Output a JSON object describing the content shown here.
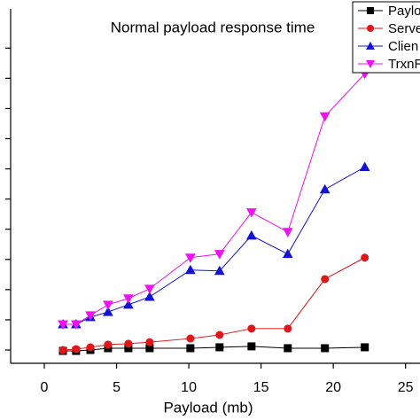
{
  "chart_data": {
    "type": "line",
    "title": "Normal payload response time",
    "x_label": "Payload (mb)",
    "x": [
      1.29,
      2.2,
      3.19,
      4.41,
      5.82,
      7.29,
      10.11,
      12.13,
      14.34,
      16.85,
      19.42,
      22.18
    ],
    "series": [
      {
        "name": "Paylo",
        "color": "#000000",
        "marker": "square",
        "values": [
          -0.03,
          -0.03,
          0,
          0.06,
          0.06,
          0.06,
          0.06,
          0.09,
          0.12,
          0.06,
          0.06,
          0.09
        ]
      },
      {
        "name": "Serve",
        "color": "#e0161b",
        "marker": "circle",
        "values": [
          0,
          0.03,
          0.09,
          0.18,
          0.21,
          0.26,
          0.38,
          0.5,
          0.71,
          0.71,
          2.35,
          3.06
        ]
      },
      {
        "name": "Clien",
        "color": "#1313d6",
        "marker": "triangle-up",
        "values": [
          0.85,
          0.85,
          1.09,
          1.26,
          1.5,
          1.76,
          2.65,
          2.62,
          3.79,
          3.18,
          5.32,
          6.06
        ]
      },
      {
        "name": "TrxnR",
        "color": "#f010f0",
        "marker": "triangle-down",
        "values": [
          0.85,
          0.85,
          1.15,
          1.5,
          1.71,
          2.03,
          3.06,
          3.18,
          4.56,
          3.91,
          7.74,
          9.15
        ]
      }
    ],
    "xlim": [
      -2.33,
      26
    ],
    "xticks": [
      0,
      5,
      10,
      15,
      20,
      25
    ],
    "ylim": [
      -0.44,
      11.3
    ],
    "yticks": [
      0,
      1,
      2,
      3,
      4,
      5,
      6,
      7,
      8,
      9,
      10
    ],
    "legend": "upper right"
  }
}
